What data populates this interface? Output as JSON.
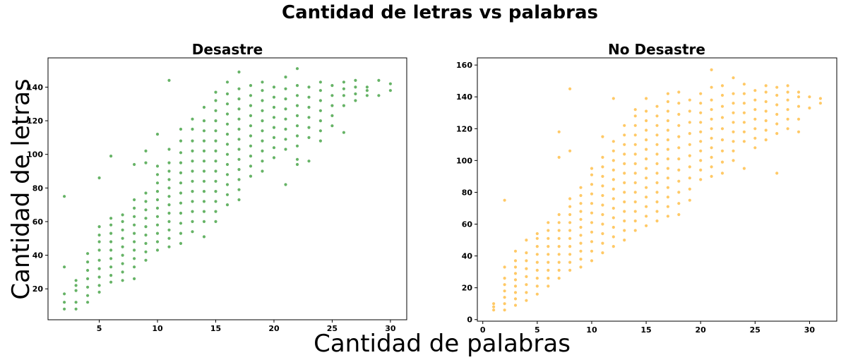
{
  "figure": {
    "suptitle": "Cantidad de letras vs palabras",
    "xlabel": "Cantidad de palabras",
    "ylabel": "Cantidad de letras"
  },
  "chart_data": [
    {
      "type": "scatter",
      "title": "Desastre",
      "color": "#008000",
      "xlim": [
        0.6,
        31.4
      ],
      "ylim": [
        1.6,
        157.4
      ],
      "xticks": [
        5,
        10,
        15,
        20,
        25,
        30
      ],
      "yticks": [
        20,
        40,
        60,
        80,
        100,
        120,
        140
      ],
      "grid": false,
      "series": [
        {
          "columns": [
            {
              "x": 2,
              "y": [
                8,
                12,
                17,
                33,
                75
              ]
            },
            {
              "x": 3,
              "y": [
                8,
                12,
                19,
                22,
                25
              ]
            },
            {
              "x": 4,
              "y": [
                12,
                16,
                21,
                26,
                31,
                36,
                41
              ]
            },
            {
              "x": 5,
              "y": [
                18,
                22,
                27,
                32,
                37,
                43,
                48,
                52,
                57,
                86
              ]
            },
            {
              "x": 6,
              "y": [
                24,
                28,
                33,
                38,
                43,
                48,
                53,
                58,
                62,
                99
              ]
            },
            {
              "x": 7,
              "y": [
                25,
                30,
                35,
                40,
                45,
                50,
                55,
                60,
                64
              ]
            },
            {
              "x": 8,
              "y": [
                26,
                33,
                38,
                43,
                48,
                53,
                58,
                63,
                68,
                73,
                94
              ]
            },
            {
              "x": 9,
              "y": [
                37,
                42,
                47,
                52,
                57,
                62,
                67,
                72,
                77,
                95,
                102
              ]
            },
            {
              "x": 10,
              "y": [
                43,
                48,
                53,
                58,
                63,
                68,
                73,
                78,
                83,
                88,
                93,
                112
              ]
            },
            {
              "x": 11,
              "y": [
                45,
                50,
                55,
                60,
                65,
                70,
                75,
                80,
                85,
                90,
                95,
                103,
                144
              ]
            },
            {
              "x": 12,
              "y": [
                47,
                53,
                59,
                65,
                71,
                77,
                83,
                89,
                95,
                101,
                108,
                115
              ]
            },
            {
              "x": 13,
              "y": [
                54,
                60,
                66,
                72,
                78,
                84,
                90,
                96,
                102,
                108,
                115,
                121
              ]
            },
            {
              "x": 14,
              "y": [
                51,
                60,
                66,
                72,
                78,
                84,
                90,
                96,
                102,
                108,
                114,
                120,
                128
              ]
            },
            {
              "x": 15,
              "y": [
                60,
                66,
                72,
                78,
                84,
                90,
                96,
                102,
                108,
                114,
                120,
                126,
                132,
                137
              ]
            },
            {
              "x": 16,
              "y": [
                70,
                76,
                82,
                88,
                94,
                100,
                106,
                112,
                118,
                124,
                130,
                136,
                143
              ]
            },
            {
              "x": 17,
              "y": [
                73,
                79,
                85,
                91,
                97,
                103,
                109,
                115,
                121,
                127,
                133,
                139,
                149
              ]
            },
            {
              "x": 18,
              "y": [
                87,
                93,
                99,
                105,
                111,
                117,
                123,
                129,
                135,
                141
              ]
            },
            {
              "x": 19,
              "y": [
                90,
                96,
                102,
                108,
                114,
                120,
                126,
                132,
                138,
                143
              ]
            },
            {
              "x": 20,
              "y": [
                98,
                104,
                110,
                116,
                122,
                128,
                134,
                140
              ]
            },
            {
              "x": 21,
              "y": [
                82,
                103,
                109,
                115,
                121,
                127,
                133,
                139,
                146
              ]
            },
            {
              "x": 22,
              "y": [
                94,
                97,
                105,
                111,
                117,
                123,
                129,
                135,
                141,
                151
              ]
            },
            {
              "x": 23,
              "y": [
                96,
                110,
                116,
                122,
                128,
                134,
                140
              ]
            },
            {
              "x": 24,
              "y": [
                108,
                114,
                120,
                126,
                132,
                138,
                143
              ]
            },
            {
              "x": 25,
              "y": [
                117,
                123,
                129,
                135,
                141
              ]
            },
            {
              "x": 26,
              "y": [
                113,
                129,
                135,
                139,
                143
              ]
            },
            {
              "x": 27,
              "y": [
                132,
                136,
                140,
                144
              ]
            },
            {
              "x": 28,
              "y": [
                135,
                138,
                140
              ]
            },
            {
              "x": 29,
              "y": [
                135,
                144
              ]
            },
            {
              "x": 30,
              "y": [
                138,
                142
              ]
            }
          ]
        }
      ]
    },
    {
      "type": "scatter",
      "title": "No Desastre",
      "color": "#ffa500",
      "xlim": [
        -0.5,
        32.5
      ],
      "ylim": [
        -1.0,
        164.5
      ],
      "xticks": [
        0,
        5,
        10,
        15,
        20,
        25,
        30
      ],
      "yticks": [
        0,
        20,
        40,
        60,
        80,
        100,
        120,
        140,
        160
      ],
      "grid": false,
      "series": [
        {
          "columns": [
            {
              "x": 1,
              "y": [
                6,
                8,
                10
              ]
            },
            {
              "x": 2,
              "y": [
                6,
                10,
                14,
                18,
                22,
                26,
                33,
                75
              ]
            },
            {
              "x": 3,
              "y": [
                9,
                13,
                17,
                21,
                25,
                29,
                33,
                37,
                43
              ]
            },
            {
              "x": 4,
              "y": [
                12,
                17,
                22,
                27,
                32,
                37,
                42,
                50
              ]
            },
            {
              "x": 5,
              "y": [
                16,
                21,
                26,
                31,
                36,
                41,
                46,
                51,
                54
              ]
            },
            {
              "x": 6,
              "y": [
                21,
                26,
                31,
                36,
                41,
                46,
                51,
                56,
                61
              ]
            },
            {
              "x": 7,
              "y": [
                26,
                31,
                36,
                41,
                46,
                51,
                56,
                61,
                66,
                102,
                118
              ]
            },
            {
              "x": 8,
              "y": [
                31,
                36,
                41,
                46,
                51,
                56,
                61,
                66,
                71,
                76,
                106,
                145
              ]
            },
            {
              "x": 9,
              "y": [
                33,
                38,
                43,
                48,
                53,
                58,
                63,
                68,
                73,
                78,
                83
              ]
            },
            {
              "x": 10,
              "y": [
                37,
                43,
                49,
                55,
                61,
                67,
                73,
                79,
                85,
                91,
                95
              ]
            },
            {
              "x": 11,
              "y": [
                42,
                48,
                54,
                60,
                66,
                72,
                78,
                84,
                90,
                96,
                102,
                115
              ]
            },
            {
              "x": 12,
              "y": [
                46,
                52,
                58,
                64,
                70,
                76,
                82,
                88,
                94,
                100,
                106,
                112,
                139
              ]
            },
            {
              "x": 13,
              "y": [
                50,
                56,
                62,
                68,
                74,
                80,
                86,
                92,
                98,
                104,
                110,
                116,
                122
              ]
            },
            {
              "x": 14,
              "y": [
                56,
                62,
                68,
                74,
                80,
                86,
                92,
                98,
                104,
                110,
                116,
                122,
                128,
                132
              ]
            },
            {
              "x": 15,
              "y": [
                59,
                65,
                71,
                77,
                83,
                89,
                95,
                101,
                107,
                113,
                119,
                125,
                131,
                139
              ]
            },
            {
              "x": 16,
              "y": [
                62,
                68,
                74,
                80,
                86,
                92,
                98,
                104,
                110,
                116,
                122,
                128,
                134
              ]
            },
            {
              "x": 17,
              "y": [
                65,
                71,
                77,
                83,
                89,
                95,
                101,
                107,
                113,
                119,
                125,
                131,
                137,
                142
              ]
            },
            {
              "x": 18,
              "y": [
                66,
                73,
                80,
                87,
                94,
                101,
                108,
                115,
                122,
                129,
                136,
                143
              ]
            },
            {
              "x": 19,
              "y": [
                75,
                82,
                89,
                96,
                103,
                110,
                117,
                124,
                131,
                138
              ]
            },
            {
              "x": 20,
              "y": [
                88,
                94,
                100,
                106,
                112,
                118,
                124,
                130,
                136,
                142
              ]
            },
            {
              "x": 21,
              "y": [
                90,
                96,
                102,
                108,
                114,
                120,
                126,
                132,
                138,
                146,
                157
              ]
            },
            {
              "x": 22,
              "y": [
                92,
                99,
                106,
                113,
                120,
                127,
                134,
                141,
                147
              ]
            },
            {
              "x": 23,
              "y": [
                100,
                106,
                112,
                118,
                124,
                130,
                136,
                142,
                152
              ]
            },
            {
              "x": 24,
              "y": [
                95,
                112,
                118,
                124,
                130,
                136,
                142,
                148
              ]
            },
            {
              "x": 25,
              "y": [
                108,
                114,
                120,
                126,
                132,
                138,
                144
              ]
            },
            {
              "x": 26,
              "y": [
                113,
                119,
                125,
                131,
                137,
                143,
                147
              ]
            },
            {
              "x": 27,
              "y": [
                92,
                117,
                123,
                129,
                135,
                141,
                146
              ]
            },
            {
              "x": 28,
              "y": [
                120,
                126,
                132,
                138,
                143,
                147
              ]
            },
            {
              "x": 29,
              "y": [
                118,
                126,
                134,
                140,
                143
              ]
            },
            {
              "x": 30,
              "y": [
                133,
                140
              ]
            },
            {
              "x": 31,
              "y": [
                136,
                139
              ]
            }
          ]
        }
      ]
    }
  ]
}
